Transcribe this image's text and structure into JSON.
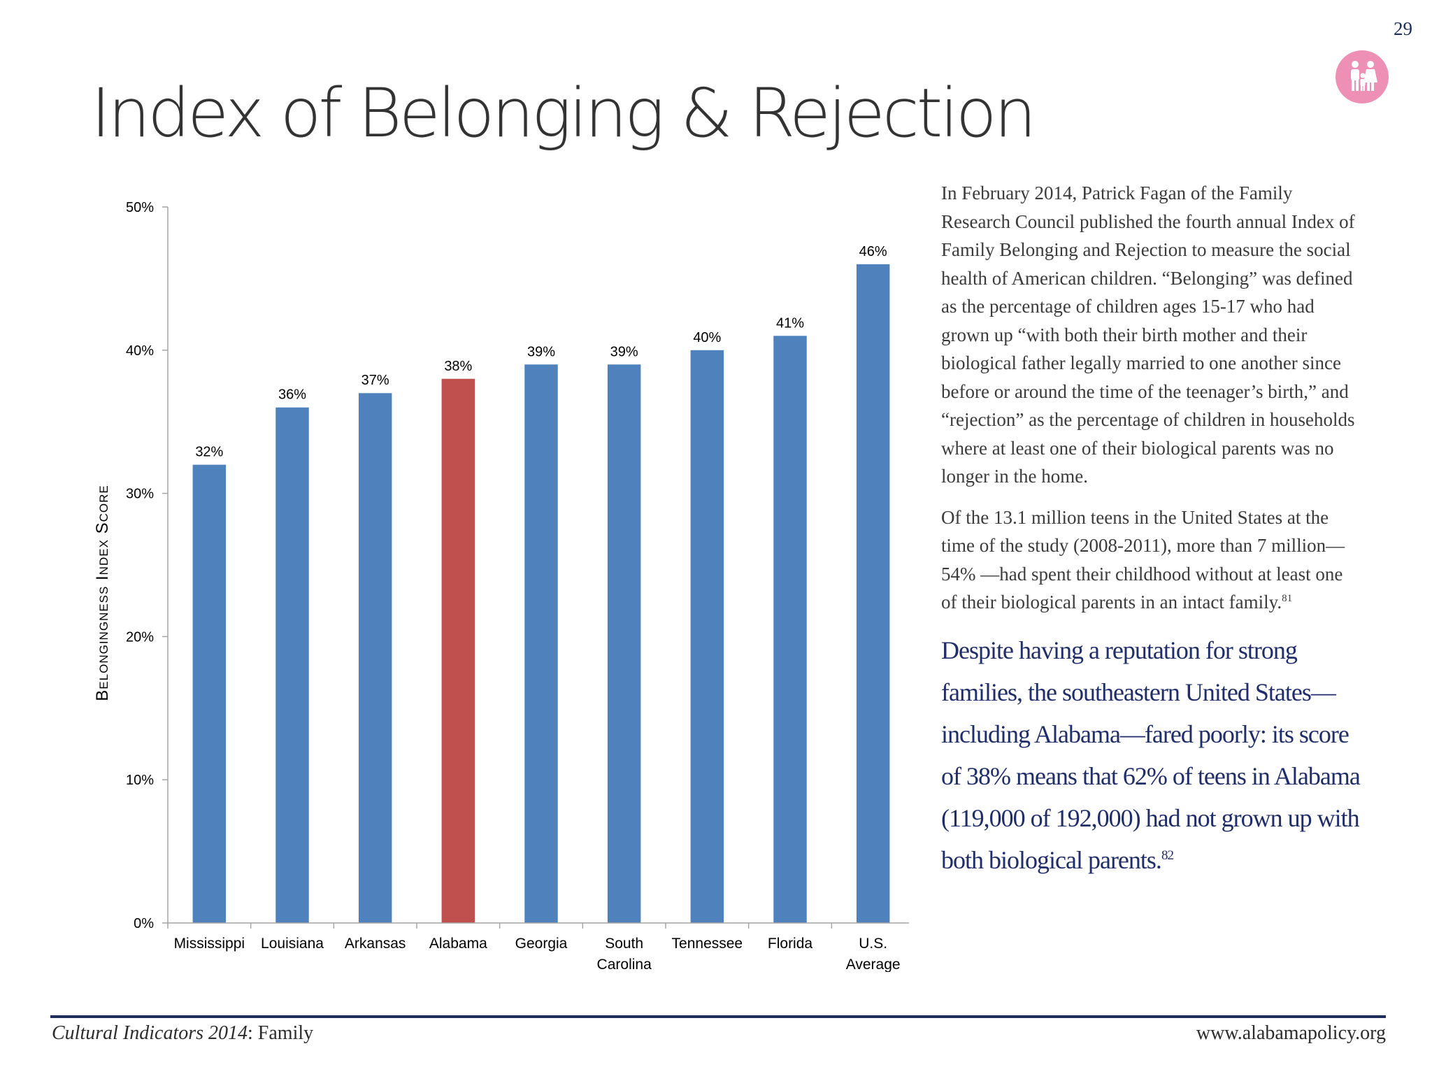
{
  "page": {
    "number": "29",
    "title": "Index of Belonging & Rejection",
    "icon": "family-icon",
    "icon_color": "#ee8fb6"
  },
  "chart_data": {
    "type": "bar",
    "categories": [
      "Mississippi",
      "Louisiana",
      "Arkansas",
      "Alabama",
      "Georgia",
      "South Carolina",
      "Tennessee",
      "Florida",
      "U.S. Average"
    ],
    "category_lines": [
      [
        "Mississippi"
      ],
      [
        "Louisiana"
      ],
      [
        "Arkansas"
      ],
      [
        "Alabama"
      ],
      [
        "Georgia"
      ],
      [
        "South",
        "Carolina"
      ],
      [
        "Tennessee"
      ],
      [
        "Florida"
      ],
      [
        "U.S.",
        "Average"
      ]
    ],
    "values": [
      32,
      36,
      37,
      38,
      39,
      39,
      40,
      41,
      46
    ],
    "data_labels": [
      "32%",
      "36%",
      "37%",
      "38%",
      "39%",
      "39%",
      "40%",
      "41%",
      "46%"
    ],
    "ylabel": "Belongingness Index Score",
    "ylim": [
      0,
      50
    ],
    "yticks": [
      0,
      10,
      20,
      30,
      40,
      50
    ],
    "ytick_labels": [
      "0%",
      "10%",
      "20%",
      "30%",
      "40%",
      "50%"
    ],
    "bar_color": "#4f81bd",
    "highlight_category": "Alabama",
    "highlight_color": "#c0504d",
    "grid": false,
    "legend": "none"
  },
  "text": {
    "paragraph1": "In February 2014, Patrick Fagan of the Family Research Council published the fourth annual Index of Family Belonging and Rejection to measure the social health of American children. “Belonging” was defined as the percentage of children ages 15-17 who had grown up “with both their birth mother and their biological father legally married to one another since before or around the time of the teenager’s birth,” and “rejection” as the percentage of children in households where at least one of their biological parents was no longer in the home.",
    "paragraph2": "Of the 13.1 million teens in the United States at the time of the study (2008-2011), more than 7 million—54% —had spent their childhood without at least one of their biological parents in an intact family.",
    "paragraph2_note": "81",
    "callout": "Despite having a reputation for strong families, the southeastern United States—including Alabama—fared poorly: its score of 38% means that 62% of teens in Alabama (119,000 of 192,000) had not grown up with both biological parents.",
    "callout_note": "82",
    "callout_color": "#1f2d6b"
  },
  "footer": {
    "publication_italic": "Cultural Indicators 2014",
    "publication_rest": ": Family",
    "website": "www.alabamapolicy.org"
  }
}
